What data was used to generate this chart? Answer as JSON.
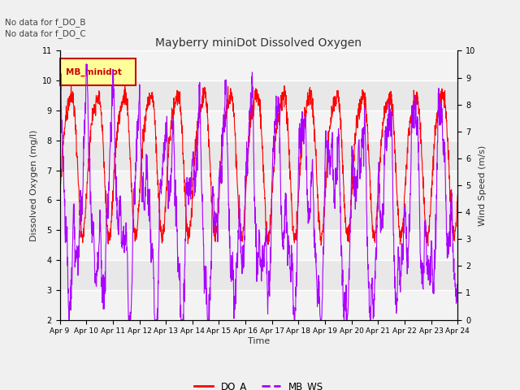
{
  "title": "Mayberry miniDot Dissolved Oxygen",
  "xlabel": "Time",
  "ylabel_left": "Dissolved Oxygen (mg/l)",
  "ylabel_right": "Wind Speed (m/s)",
  "ylim_left": [
    2.0,
    11.0
  ],
  "ylim_right": [
    0.0,
    10.0
  ],
  "yticks_left": [
    2.0,
    3.0,
    4.0,
    5.0,
    6.0,
    7.0,
    8.0,
    9.0,
    10.0,
    11.0
  ],
  "yticks_right": [
    0.0,
    1.0,
    2.0,
    3.0,
    4.0,
    5.0,
    6.0,
    7.0,
    8.0,
    9.0,
    10.0
  ],
  "xtick_labels": [
    "Apr 9",
    "Apr 10",
    "Apr 11",
    "Apr 12",
    "Apr 13",
    "Apr 14",
    "Apr 15",
    "Apr 16",
    "Apr 17",
    "Apr 18",
    "Apr 19",
    "Apr 20",
    "Apr 21",
    "Apr 22",
    "Apr 23",
    "Apr 24"
  ],
  "color_DO_A": "#ff0000",
  "color_MB_WS": "#aa00ff",
  "legend_box_facecolor": "#ffff99",
  "legend_box_edgecolor": "#cc0000",
  "legend_box_textcolor": "#cc0000",
  "legend_box_label": "MB_minidot",
  "annotations": [
    "No data for f_DO_B",
    "No data for f_DO_C"
  ],
  "fig_facecolor": "#f0f0f0",
  "plot_facecolor": "#e8e8e8",
  "white_band_top": "#f5f5f5",
  "white_band_bottom": "#f5f5f5"
}
